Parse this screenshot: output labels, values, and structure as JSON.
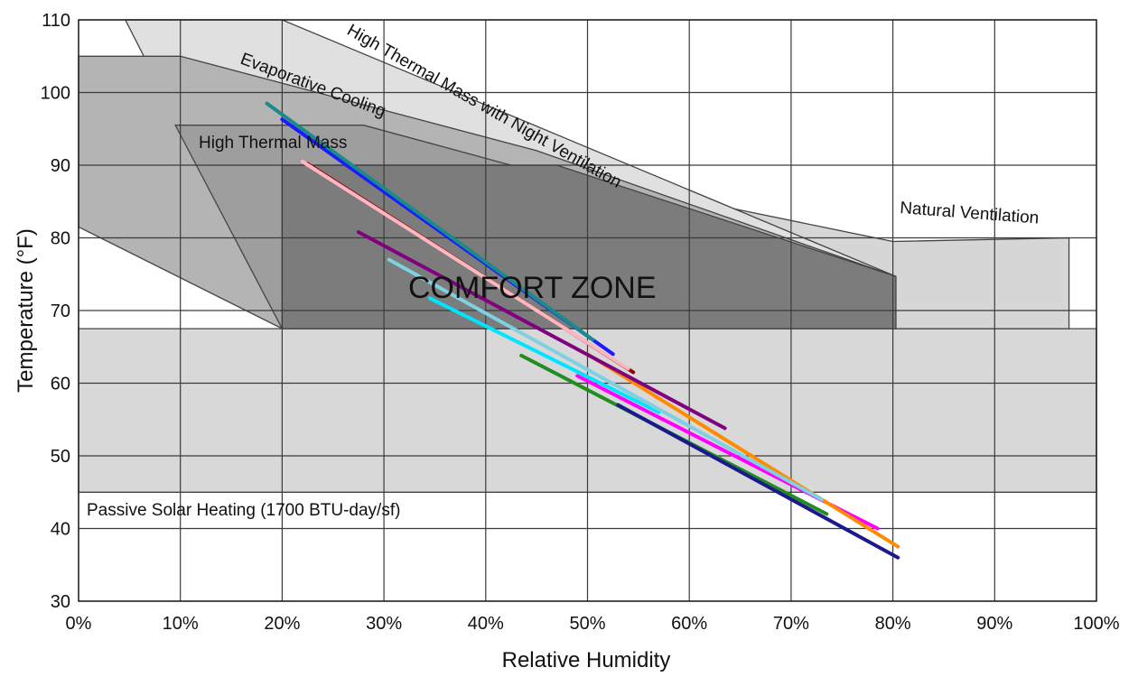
{
  "chart_data": {
    "type": "line",
    "title": "",
    "xlabel": "Relative Humidity",
    "ylabel": "Temperature (°F)",
    "xlim": [
      0,
      100
    ],
    "ylim": [
      30,
      110
    ],
    "x_ticks": [
      0,
      10,
      20,
      30,
      40,
      50,
      60,
      70,
      80,
      90,
      100
    ],
    "x_tick_labels": [
      "0%",
      "10%",
      "20%",
      "30%",
      "40%",
      "50%",
      "60%",
      "70%",
      "80%",
      "90%",
      "100%"
    ],
    "y_ticks": [
      30,
      40,
      50,
      60,
      70,
      80,
      90,
      100,
      110
    ],
    "y_tick_labels": [
      "30",
      "40",
      "50",
      "60",
      "70",
      "80",
      "90",
      "100",
      "110"
    ],
    "grid": true,
    "zones": [
      {
        "name": "passive-solar-heating",
        "label": "Passive Solar Heating (1700 BTU-day/sf)",
        "color": "#d8d8d8",
        "points": [
          [
            0,
            45
          ],
          [
            100,
            45
          ],
          [
            100,
            67.5
          ],
          [
            0,
            67.5
          ]
        ]
      },
      {
        "name": "natural-ventilation",
        "label": "Natural Ventilation",
        "color": "#d6d6d6",
        "points": [
          [
            20,
            90
          ],
          [
            47,
            89
          ],
          [
            80,
            79.5
          ],
          [
            97.3,
            80
          ],
          [
            97.3,
            67.5
          ],
          [
            20,
            67.5
          ]
        ]
      },
      {
        "name": "high-thermal-mass-with-night-ventilation",
        "label": "High Thermal Mass with Night Ventilation",
        "color": "#e0e0e0",
        "points": [
          [
            4.6,
            110
          ],
          [
            20,
            110
          ],
          [
            80.3,
            74.7
          ],
          [
            20,
            67.5
          ]
        ]
      },
      {
        "name": "evaporative-cooling",
        "label": "Evaporative Cooling",
        "color": "#b4b4b4",
        "points": [
          [
            0,
            105
          ],
          [
            10,
            105
          ],
          [
            45,
            92
          ],
          [
            80.3,
            74.7
          ],
          [
            20,
            67.5
          ],
          [
            0,
            81.5
          ]
        ]
      },
      {
        "name": "high-thermal-mass",
        "label": "High Thermal Mass",
        "color": "#9e9e9e",
        "points": [
          [
            9.5,
            95.5
          ],
          [
            28,
            95.5
          ],
          [
            43,
            89.8
          ],
          [
            80.3,
            74.7
          ],
          [
            20,
            67.5
          ]
        ]
      },
      {
        "name": "comfort-zone",
        "label": "COMFORT ZONE",
        "color": "#7c7c7c",
        "points": [
          [
            20,
            90
          ],
          [
            47,
            90
          ],
          [
            80.3,
            74.7
          ],
          [
            80.3,
            67.5
          ],
          [
            20,
            67.5
          ]
        ]
      }
    ],
    "series": [
      {
        "color": "#228b22",
        "x": [
          43.5,
          73.5
        ],
        "y": [
          63.8,
          42
        ]
      },
      {
        "color": "#ff00ff",
        "x": [
          49,
          78.5
        ],
        "y": [
          61,
          40
        ]
      },
      {
        "color": "#ff8c00",
        "x": [
          50,
          80.5
        ],
        "y": [
          64,
          37.5
        ]
      },
      {
        "color": "#1a1a8c",
        "x": [
          53,
          80.5
        ],
        "y": [
          57,
          36
        ]
      },
      {
        "color": "#00e5ff",
        "x": [
          34.5,
          57
        ],
        "y": [
          71.7,
          56
        ]
      },
      {
        "color": "#7fd0e0",
        "x": [
          30.5,
          73
        ],
        "y": [
          77,
          44
        ]
      },
      {
        "color": "#800080",
        "x": [
          27.5,
          63.5
        ],
        "y": [
          80.8,
          53.8
        ]
      },
      {
        "color": "#8b0000",
        "x": [
          22.5,
          54.5
        ],
        "y": [
          90.2,
          61.5
        ]
      },
      {
        "color": "#ffb6c1",
        "x": [
          22,
          54
        ],
        "y": [
          90.5,
          62
        ]
      },
      {
        "color": "#1a1aff",
        "x": [
          20,
          52.5
        ],
        "y": [
          96.3,
          64
        ]
      },
      {
        "color": "#1a8a8a",
        "x": [
          18.5,
          50.5
        ],
        "y": [
          98.5,
          66
        ]
      }
    ]
  }
}
